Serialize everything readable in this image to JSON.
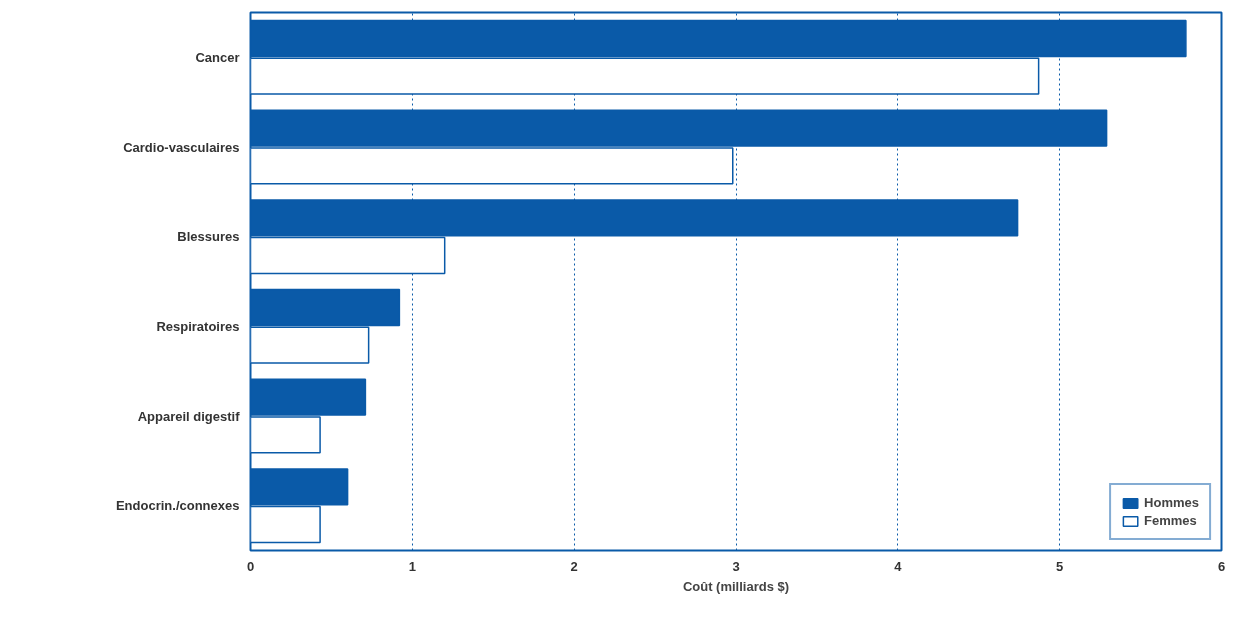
{
  "chart_data": {
    "type": "bar",
    "orientation": "horizontal",
    "xlabel": "Coût (milliards $)",
    "categories": [
      "Cancer",
      "Cardio-vasculaires",
      "Blessures",
      "Respiratoires",
      "Appareil digestif",
      "Endocrin./connexes"
    ],
    "series": [
      {
        "name": "Hommes",
        "color": "#0a5aa8",
        "values": [
          5.78,
          5.29,
          4.74,
          0.92,
          0.71,
          0.6
        ]
      },
      {
        "name": "Femmes",
        "color": "#ffffff",
        "values": [
          4.87,
          2.98,
          1.2,
          0.73,
          0.43,
          0.43
        ]
      }
    ],
    "xlim": [
      0,
      6
    ],
    "xticks": [
      0,
      1,
      2,
      3,
      4,
      5,
      6
    ],
    "grid": "x",
    "legend": "bottom right"
  }
}
